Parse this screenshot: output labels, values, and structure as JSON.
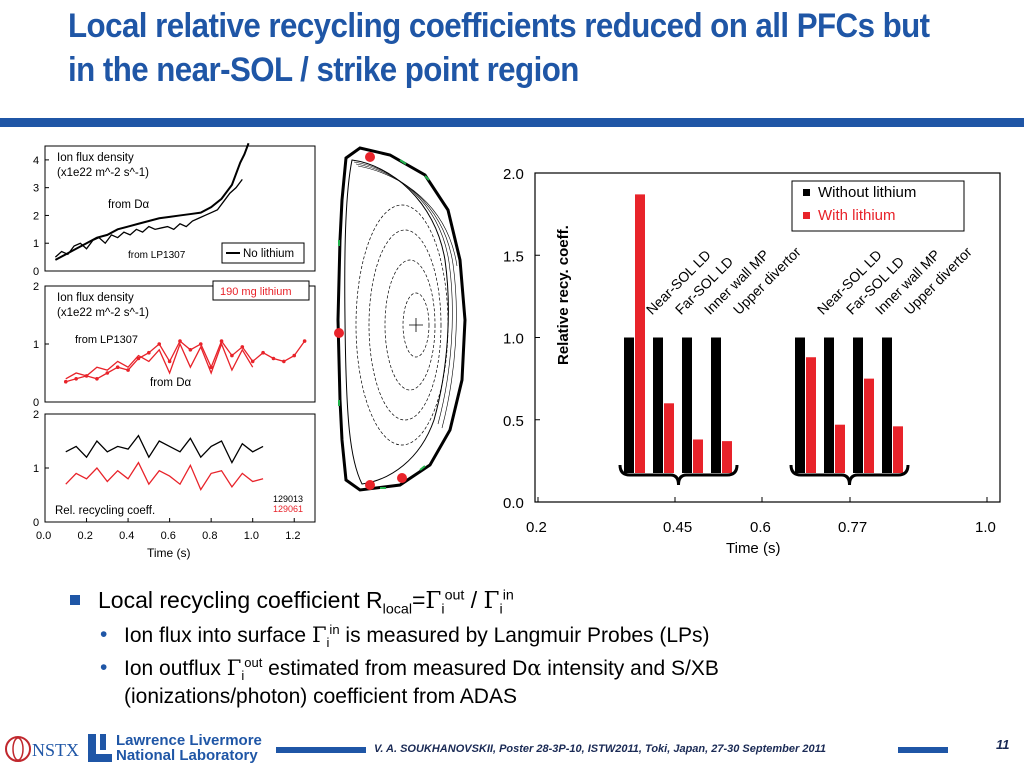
{
  "slide": {
    "title": "Local relative recycling coefficients reduced on all PFCs but in the near-SOL / strike point region",
    "page_number": "11",
    "citation": "V. A. SOUKHANOVSKII, Poster 28-3P-10, ISTW2011, Toki, Japan, 27-30 September 2011",
    "accent_color": "#1f56a6"
  },
  "logos": {
    "nstx": "NSTX",
    "llnl_line1": "Lawrence Livermore",
    "llnl_line2": "National Laboratory"
  },
  "bullets": {
    "main_prefix": "Local recycling coefficient R",
    "main_sub": "local",
    "main_eq": "=",
    "gamma": "Γ",
    "sub_i": "i",
    "sup_out": "out",
    "sup_in": "in",
    "slash": " / ",
    "sub1_prefix": "Ion flux into surface ",
    "sub1_suffix": " is measured by Langmuir Probes (LPs)",
    "sub2_prefix": "Ion outflux ",
    "sub2_mid": " estimated from measured D",
    "alpha": "α",
    "sub2_suffix": " intensity and S/XB",
    "sub2_line2": "(ionizations/photon) coefficient from ADAS"
  },
  "chart_data": [
    {
      "type": "line",
      "panel": "top",
      "title": "Ion flux density",
      "title_line2": "(x1e22 m^-2 s^-1)",
      "ylim": [
        0,
        4.5
      ],
      "yticks": [
        "0",
        "1",
        "2",
        "3",
        "4"
      ],
      "legend": "No lithium",
      "annotations": [
        "from Dα",
        "from LP1307"
      ],
      "series": [
        {
          "name": "from Dα",
          "color": "#000000",
          "x": [
            0.05,
            0.1,
            0.15,
            0.2,
            0.25,
            0.3,
            0.35,
            0.4,
            0.45,
            0.5,
            0.55,
            0.6,
            0.65,
            0.7,
            0.75,
            0.8,
            0.85,
            0.9,
            0.92,
            0.94,
            0.96,
            0.98
          ],
          "y": [
            0.4,
            0.6,
            0.8,
            1.0,
            1.2,
            1.3,
            1.5,
            1.6,
            1.7,
            1.8,
            1.9,
            1.95,
            2.0,
            2.05,
            2.1,
            2.3,
            2.6,
            3.1,
            3.5,
            3.9,
            4.2,
            4.6
          ]
        },
        {
          "name": "from LP1307",
          "color": "#000000",
          "x": [
            0.05,
            0.08,
            0.11,
            0.14,
            0.17,
            0.2,
            0.23,
            0.26,
            0.29,
            0.32,
            0.35,
            0.38,
            0.41,
            0.44,
            0.47,
            0.5,
            0.53,
            0.56,
            0.59,
            0.62,
            0.65,
            0.68,
            0.71,
            0.74,
            0.77,
            0.8,
            0.83,
            0.86,
            0.89,
            0.92,
            0.95
          ],
          "y": [
            0.5,
            0.7,
            0.6,
            0.9,
            1.0,
            0.8,
            1.1,
            1.2,
            1.0,
            1.3,
            1.2,
            1.4,
            1.3,
            1.5,
            1.4,
            1.6,
            1.5,
            1.55,
            1.6,
            1.5,
            1.7,
            1.6,
            1.8,
            1.9,
            2.0,
            2.1,
            2.2,
            2.5,
            2.8,
            3.0,
            3.3
          ]
        }
      ]
    },
    {
      "type": "line",
      "panel": "middle",
      "title": "Ion flux density",
      "title_line2": "(x1e22 m^-2 s^-1)",
      "ylim": [
        0,
        2
      ],
      "yticks": [
        "0",
        "1",
        "2"
      ],
      "legend": "190 mg lithium",
      "annotations": [
        "from LP1307",
        "from Dα"
      ],
      "series": [
        {
          "name": "from LP1307",
          "color": "#e8232a",
          "x": [
            0.1,
            0.15,
            0.2,
            0.25,
            0.3,
            0.35,
            0.4,
            0.45,
            0.5,
            0.55,
            0.6,
            0.65,
            0.7,
            0.75,
            0.8,
            0.85,
            0.9,
            0.95,
            1.0,
            1.05,
            1.1,
            1.15,
            1.2,
            1.25
          ],
          "y": [
            0.35,
            0.4,
            0.45,
            0.4,
            0.5,
            0.6,
            0.55,
            0.75,
            0.85,
            1.0,
            0.7,
            1.05,
            0.9,
            1.0,
            0.6,
            1.05,
            0.8,
            0.95,
            0.7,
            0.85,
            0.75,
            0.7,
            0.8,
            1.05
          ]
        },
        {
          "name": "from Dα",
          "color": "#e8232a",
          "x": [
            0.1,
            0.15,
            0.2,
            0.25,
            0.3,
            0.35,
            0.4,
            0.45,
            0.5,
            0.55,
            0.6,
            0.65,
            0.7,
            0.75,
            0.8,
            0.85,
            0.9,
            0.95,
            1.0
          ],
          "y": [
            0.4,
            0.5,
            0.45,
            0.6,
            0.55,
            0.7,
            0.6,
            0.8,
            0.7,
            0.9,
            0.5,
            1.0,
            0.6,
            0.95,
            0.5,
            1.0,
            0.55,
            0.9,
            0.6
          ]
        }
      ]
    },
    {
      "type": "line",
      "panel": "bottom",
      "xlabel": "Time (s)",
      "xlim": [
        0,
        1.3
      ],
      "xticks": [
        "0.0",
        "0.2",
        "0.4",
        "0.6",
        "0.8",
        "1.0",
        "1.2"
      ],
      "ylim": [
        0,
        2
      ],
      "yticks": [
        "0",
        "1",
        "2"
      ],
      "legend": "Rel. recycling coeff.",
      "shots": [
        "129013",
        "129061"
      ],
      "series": [
        {
          "name": "129013",
          "color": "#000000",
          "x": [
            0.1,
            0.15,
            0.2,
            0.25,
            0.3,
            0.35,
            0.4,
            0.45,
            0.5,
            0.55,
            0.6,
            0.65,
            0.7,
            0.75,
            0.8,
            0.85,
            0.9,
            0.95,
            1.0,
            1.05
          ],
          "y": [
            1.3,
            1.4,
            1.2,
            1.5,
            1.3,
            1.4,
            1.35,
            1.6,
            1.2,
            1.5,
            1.4,
            1.3,
            1.55,
            1.2,
            1.4,
            1.5,
            1.1,
            1.45,
            1.3,
            1.4
          ]
        },
        {
          "name": "129061",
          "color": "#e8232a",
          "x": [
            0.1,
            0.15,
            0.2,
            0.25,
            0.3,
            0.35,
            0.4,
            0.45,
            0.5,
            0.55,
            0.6,
            0.65,
            0.7,
            0.75,
            0.8,
            0.85,
            0.9,
            0.95,
            1.0,
            1.05
          ],
          "y": [
            0.7,
            0.9,
            0.8,
            1.0,
            0.75,
            0.95,
            0.8,
            1.1,
            0.7,
            0.95,
            0.85,
            0.7,
            1.05,
            0.6,
            0.9,
            0.95,
            0.65,
            0.9,
            0.75,
            0.8
          ]
        }
      ]
    },
    {
      "type": "bar",
      "panel": "bar",
      "ylabel": "Relative recy. coeff.",
      "xlabel": "Time (s)",
      "xticks": [
        "0.2",
        "0.45",
        "0.6",
        "0.77",
        "1.0"
      ],
      "ylim": [
        0,
        2.0
      ],
      "yticks": [
        "0.0",
        "0.5",
        "1.0",
        "1.5",
        "2.0"
      ],
      "legend": [
        {
          "label": "Without lithium",
          "color": "#000000"
        },
        {
          "label": "With lithium",
          "color": "#e8232a"
        }
      ],
      "legend_position": "top-right",
      "groups": [
        {
          "categories": [
            "Near-SOL LD",
            "Far-SOL LD",
            "Inner wall MP",
            "Upper divertor"
          ],
          "without_lithium": [
            1.0,
            1.0,
            1.0,
            1.0
          ],
          "with_lithium": [
            1.87,
            0.6,
            0.38,
            0.37
          ]
        },
        {
          "categories": [
            "Near-SOL LD",
            "Far-SOL LD",
            "Inner wall MP",
            "Upper divertor"
          ],
          "without_lithium": [
            1.0,
            1.0,
            1.0,
            1.0
          ],
          "with_lithium": [
            0.88,
            0.47,
            0.75,
            0.46
          ]
        }
      ]
    }
  ]
}
